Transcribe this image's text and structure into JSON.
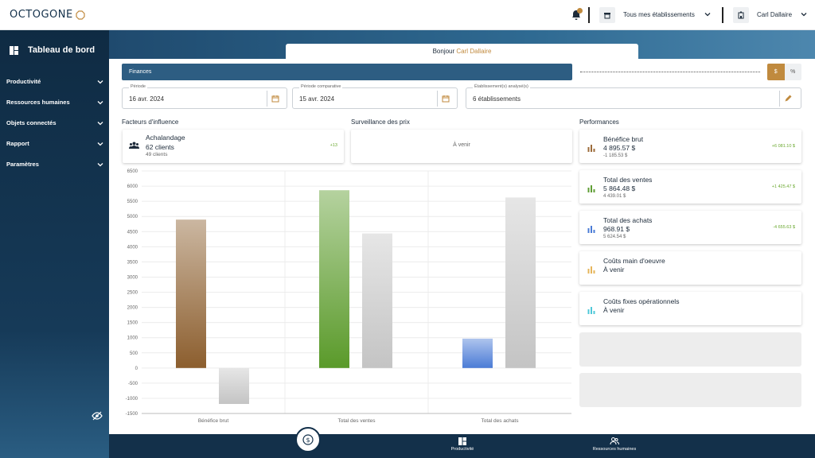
{
  "app": {
    "logo": "OCTOGONE"
  },
  "topbar": {
    "notification_count": "",
    "establishments": "Tous mes établissements",
    "user": "Carl Dallaire"
  },
  "sidebar": {
    "title": "Tableau de bord",
    "items": [
      {
        "label": "Productivité"
      },
      {
        "label": "Ressources humaines"
      },
      {
        "label": "Objets connectés"
      },
      {
        "label": "Rapport"
      },
      {
        "label": "Paramètres"
      }
    ]
  },
  "greeting": {
    "prefix": "Bonjour",
    "name": "Carl Dallaire"
  },
  "finances": {
    "label": "Finances",
    "toggle": [
      "$",
      "%"
    ],
    "active": "$"
  },
  "filters": {
    "period": {
      "label": "Période",
      "value": "16 avr. 2024"
    },
    "comparative": {
      "label": "Période comparative",
      "value": "15 avr. 2024"
    },
    "establishments": {
      "label": "Établissement(s) analysé(s)",
      "value": "6 établissements"
    }
  },
  "sections": {
    "factors": "Facteurs d'influence",
    "prices": "Surveillance des prix",
    "performances": "Performances"
  },
  "factors_card": {
    "title": "Achalandage",
    "value": "62 clients",
    "sub": "49 clients",
    "delta": "+13"
  },
  "prices_card": {
    "text": "À venir"
  },
  "performances": [
    {
      "title": "Bénéfice brut",
      "value": "4 895.57 $",
      "sub": "-1 185.53 $",
      "delta": "+6 081.10 $",
      "color": "#9c6b3a"
    },
    {
      "title": "Total des ventes",
      "value": "5 864.48 $",
      "sub": "4 439.01 $",
      "delta": "+1 425.47 $",
      "color": "#5f9e34"
    },
    {
      "title": "Total des achats",
      "value": "968.91 $",
      "sub": "5 624.54 $",
      "delta": "-4 655.63 $",
      "color": "#4a7bd6"
    },
    {
      "title": "Coûts main d'oeuvre",
      "value": "À venir",
      "color": "#e6b55a"
    },
    {
      "title": "Coûts fixes opérationnels",
      "value": "À venir",
      "color": "#4fc8d8"
    }
  ],
  "chart_data": {
    "type": "bar",
    "categories": [
      "Bénéfice brut",
      "Total des ventes",
      "Total des achats"
    ],
    "series": [
      {
        "values": [
          4895.57,
          5864.48,
          968.91
        ],
        "colors": [
          "#8c5e2e",
          "#5a9a2a",
          "#4a7bd6"
        ]
      },
      {
        "values": [
          -1185.53,
          4439.01,
          5624.54
        ],
        "colors": [
          "#c8c8c8",
          "#c8c8c8",
          "#c8c8c8"
        ]
      }
    ],
    "yticks": [
      6500,
      6000,
      5500,
      5000,
      4500,
      4000,
      3500,
      3000,
      2500,
      2000,
      1500,
      1000,
      500,
      0,
      -500,
      -1000,
      -1500
    ],
    "ylim": [
      -1500,
      6500
    ],
    "grid": true
  },
  "bottom_nav": {
    "items": [
      {
        "label": "Productivité"
      },
      {
        "label": "Ressources humaines"
      }
    ]
  }
}
